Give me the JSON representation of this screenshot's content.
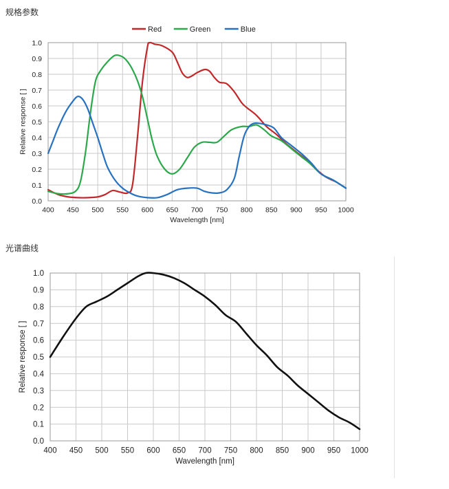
{
  "sections": {
    "spec_title": "规格参数",
    "spectrum_title": "光谱曲线"
  },
  "chart_data": [
    {
      "type": "line",
      "title": "",
      "xlabel": "Wavelength [nm]",
      "ylabel": "Relative response [ ]",
      "xlim": [
        400,
        1000
      ],
      "ylim": [
        0,
        1.0
      ],
      "xticks": [
        400,
        450,
        500,
        550,
        600,
        650,
        700,
        750,
        800,
        850,
        900,
        950,
        1000
      ],
      "yticks": [
        0.0,
        0.1,
        0.2,
        0.3,
        0.4,
        0.5,
        0.6,
        0.7,
        0.8,
        0.9,
        1.0
      ],
      "grid": true,
      "legend_position": "top-center",
      "series": [
        {
          "name": "Red",
          "color": "#c0282a",
          "x": [
            400,
            420,
            440,
            460,
            480,
            500,
            515,
            530,
            545,
            560,
            570,
            580,
            590,
            600,
            605,
            615,
            630,
            650,
            660,
            670,
            680,
            690,
            700,
            715,
            725,
            735,
            745,
            760,
            775,
            790,
            800,
            820,
            840,
            860,
            880,
            900,
            920,
            940,
            960,
            980,
            1000
          ],
          "y": [
            0.07,
            0.04,
            0.025,
            0.02,
            0.02,
            0.025,
            0.04,
            0.065,
            0.055,
            0.05,
            0.1,
            0.4,
            0.75,
            0.97,
            1.0,
            0.99,
            0.98,
            0.94,
            0.88,
            0.81,
            0.78,
            0.79,
            0.81,
            0.83,
            0.82,
            0.78,
            0.75,
            0.74,
            0.69,
            0.62,
            0.59,
            0.54,
            0.47,
            0.42,
            0.36,
            0.31,
            0.26,
            0.2,
            0.15,
            0.12,
            0.08
          ]
        },
        {
          "name": "Green",
          "color": "#2aa84a",
          "x": [
            400,
            420,
            440,
            455,
            465,
            475,
            485,
            495,
            505,
            520,
            535,
            550,
            560,
            570,
            580,
            590,
            600,
            610,
            620,
            635,
            650,
            665,
            680,
            695,
            710,
            725,
            740,
            755,
            770,
            790,
            805,
            820,
            835,
            850,
            870,
            890,
            910,
            930,
            950,
            975,
            1000
          ],
          "y": [
            0.06,
            0.045,
            0.045,
            0.06,
            0.12,
            0.3,
            0.55,
            0.75,
            0.82,
            0.88,
            0.92,
            0.91,
            0.88,
            0.83,
            0.76,
            0.66,
            0.52,
            0.38,
            0.28,
            0.2,
            0.17,
            0.2,
            0.27,
            0.34,
            0.37,
            0.37,
            0.37,
            0.41,
            0.45,
            0.47,
            0.47,
            0.48,
            0.45,
            0.41,
            0.38,
            0.33,
            0.28,
            0.23,
            0.17,
            0.13,
            0.08
          ]
        },
        {
          "name": "Blue",
          "color": "#2671c0",
          "x": [
            400,
            410,
            420,
            435,
            450,
            460,
            470,
            480,
            490,
            500,
            510,
            520,
            535,
            550,
            565,
            580,
            600,
            620,
            640,
            660,
            680,
            700,
            715,
            730,
            745,
            760,
            775,
            785,
            795,
            805,
            815,
            825,
            840,
            855,
            870,
            890,
            910,
            930,
            950,
            975,
            1000
          ],
          "y": [
            0.3,
            0.38,
            0.46,
            0.56,
            0.63,
            0.66,
            0.64,
            0.58,
            0.49,
            0.4,
            0.3,
            0.21,
            0.13,
            0.08,
            0.05,
            0.03,
            0.02,
            0.02,
            0.04,
            0.07,
            0.08,
            0.08,
            0.06,
            0.05,
            0.05,
            0.07,
            0.14,
            0.28,
            0.41,
            0.47,
            0.49,
            0.49,
            0.48,
            0.46,
            0.4,
            0.35,
            0.3,
            0.24,
            0.17,
            0.13,
            0.08
          ]
        }
      ]
    },
    {
      "type": "line",
      "title": "",
      "xlabel": "Wavelength [nm]",
      "ylabel": "Relative response [ ]",
      "xlim": [
        400,
        1000
      ],
      "ylim": [
        0,
        1.0
      ],
      "xticks": [
        400,
        450,
        500,
        550,
        600,
        650,
        700,
        750,
        800,
        850,
        900,
        950,
        1000
      ],
      "yticks": [
        0.0,
        0.1,
        0.2,
        0.3,
        0.4,
        0.5,
        0.6,
        0.7,
        0.8,
        0.9,
        1.0
      ],
      "grid": true,
      "series": [
        {
          "color": "#111111",
          "x": [
            400,
            425,
            450,
            470,
            490,
            510,
            530,
            550,
            570,
            585,
            600,
            620,
            640,
            660,
            680,
            700,
            720,
            740,
            760,
            780,
            800,
            820,
            840,
            860,
            880,
            900,
            920,
            940,
            960,
            980,
            1000
          ],
          "y": [
            0.5,
            0.62,
            0.73,
            0.8,
            0.83,
            0.86,
            0.9,
            0.94,
            0.98,
            1.0,
            1.0,
            0.99,
            0.97,
            0.94,
            0.9,
            0.86,
            0.81,
            0.75,
            0.71,
            0.64,
            0.57,
            0.51,
            0.44,
            0.39,
            0.33,
            0.28,
            0.23,
            0.18,
            0.14,
            0.11,
            0.07
          ]
        }
      ]
    }
  ]
}
